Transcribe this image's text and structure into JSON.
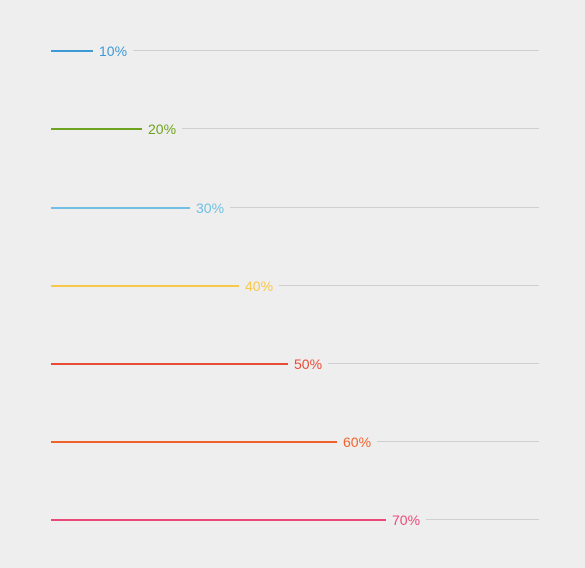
{
  "progress_bars": [
    {
      "label": "10%",
      "value": 0.1,
      "color": "#3d9ad6"
    },
    {
      "label": "20%",
      "value": 0.2,
      "color": "#6ea31f"
    },
    {
      "label": "30%",
      "value": 0.3,
      "color": "#6fc0e4"
    },
    {
      "label": "40%",
      "value": 0.4,
      "color": "#f8c84a"
    },
    {
      "label": "50%",
      "value": 0.5,
      "color": "#e94b35"
    },
    {
      "label": "60%",
      "value": 0.6,
      "color": "#f0622b"
    },
    {
      "label": "70%",
      "value": 0.7,
      "color": "#ea4a7a"
    }
  ]
}
